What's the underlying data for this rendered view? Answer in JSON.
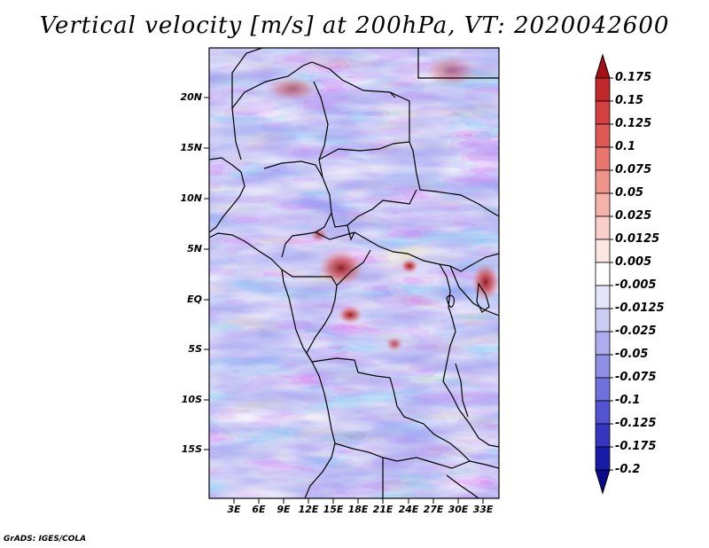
{
  "title": "Vertical velocity [m/s] at 200hPa, VT: 2020042600",
  "footer": "GrADS: IGES/COLA",
  "map": {
    "lat_ticks": [
      "20N",
      "15N",
      "10N",
      "5N",
      "EQ",
      "5S",
      "10S",
      "15S"
    ],
    "lon_ticks": [
      "3E",
      "6E",
      "9E",
      "12E",
      "15E",
      "18E",
      "21E",
      "24E",
      "27E",
      "30E",
      "33E"
    ]
  },
  "colorbar": {
    "labels": [
      "0.175",
      "0.15",
      "0.125",
      "0.1",
      "0.075",
      "0.05",
      "0.025",
      "0.0125",
      "0.005",
      "-0.005",
      "-0.0125",
      "-0.025",
      "-0.05",
      "-0.075",
      "-0.1",
      "-0.125",
      "-0.175",
      "-0.2"
    ],
    "colors": [
      "#a50f15",
      "#c0282b",
      "#d3403f",
      "#e05a55",
      "#e8766e",
      "#ef948b",
      "#f4b2aa",
      "#f8cfc9",
      "#fbe6e2",
      "#ffffff",
      "#e4e4fa",
      "#cbcbf4",
      "#adadee",
      "#8f8fe6",
      "#7171dc",
      "#5353d0",
      "#3535bf",
      "#1a1aa8",
      "#0a0a8a"
    ]
  }
}
